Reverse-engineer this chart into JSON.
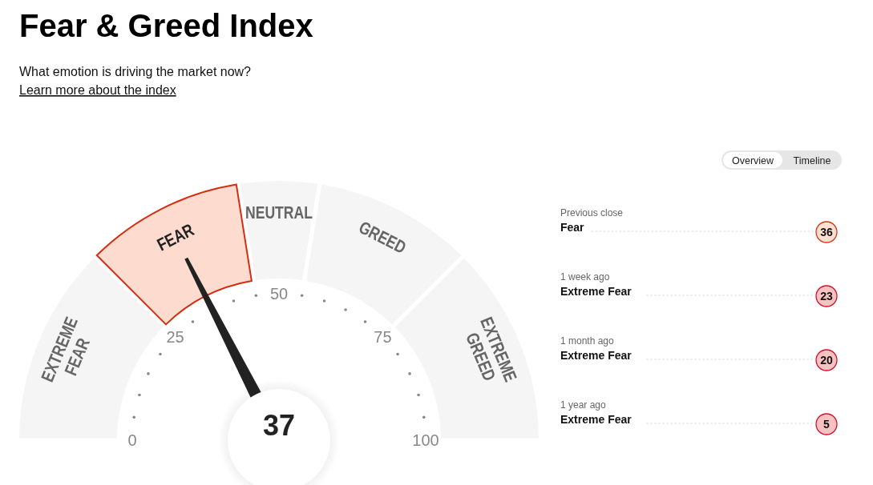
{
  "chart_data": [
    {
      "type": "donut",
      "title": "Fear & Greed Index",
      "subtitle": "What emotion is driving the market now?",
      "categories": [
        "EXTREME FEAR",
        "FEAR",
        "NEUTRAL",
        "GREED",
        "EXTREME GREED"
      ],
      "values": [
        25,
        20,
        10,
        20,
        25
      ],
      "colors": [
        "#f5f5f5",
        "#fddccf",
        "#f5f5f5",
        "#f5f5f5",
        "#f5f5f5"
      ],
      "needle": "FEAR",
      "annotations": [
        "Learn more about the index",
        "37",
        "0",
        "25",
        "50",
        "75",
        "100"
      ]
    },
    {
      "type": "other",
      "categories": [
        "Previous close",
        "1 week ago",
        "1 month ago",
        "1 year ago"
      ],
      "values": [
        36,
        23,
        20,
        5
      ],
      "colors": [
        "#fde0d2",
        "#f9c2c2",
        "#f9c2c2",
        "#f9c2c2"
      ],
      "data_labels": true,
      "annotations": [
        {
          "text": "Fear",
          "x": "Previous close"
        },
        {
          "text": "Extreme Fear",
          "x": "1 week ago"
        },
        {
          "text": "Extreme Fear",
          "x": "1 month ago"
        },
        {
          "text": "Extreme Fear",
          "x": "1 year ago"
        },
        "Overview",
        "Timeline"
      ]
    }
  ]
}
